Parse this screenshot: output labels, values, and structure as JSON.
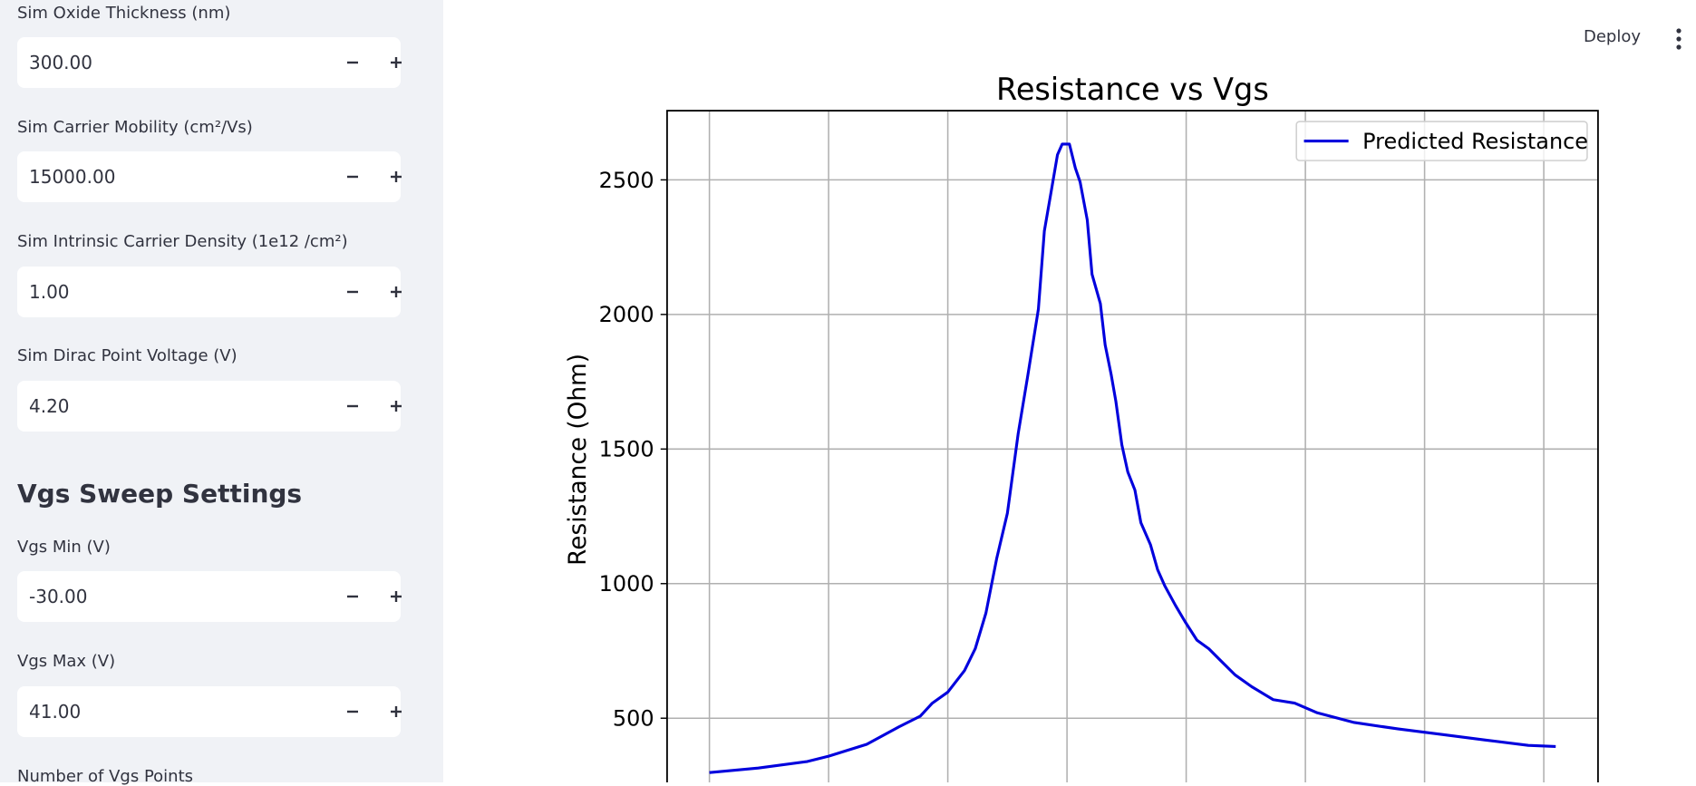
{
  "sidebar": {
    "fields": [
      {
        "label": "Sim Oxide Thickness (nm)",
        "value": "300.00"
      },
      {
        "label": "Sim Carrier Mobility (cm²/Vs)",
        "value": "15000.00"
      },
      {
        "label": "Sim Intrinsic Carrier Density (1e12 /cm²)",
        "value": "1.00"
      },
      {
        "label": "Sim Dirac Point Voltage (V)",
        "value": "4.20"
      }
    ],
    "section_heading": "Vgs Sweep Settings",
    "sweep_fields": [
      {
        "label": "Vgs Min (V)",
        "value": "-30.00"
      },
      {
        "label": "Vgs Max (V)",
        "value": "41.00"
      }
    ],
    "next_label": "Number of Vgs Points"
  },
  "header": {
    "deploy": "Deploy"
  },
  "chart_data": {
    "type": "line",
    "title": "Resistance vs Vgs",
    "ylabel": "Resistance (Ohm)",
    "x": [
      -30,
      -25.9,
      -21.8,
      -20,
      -16.8,
      -14.1,
      -12.3,
      -11.3,
      -10,
      -8.6,
      -7.7,
      -6.8,
      -5.9,
      -5,
      -4.1,
      -3.3,
      -2.4,
      -1.9,
      -1.3,
      -0.8,
      -0.4,
      0.2,
      0.7,
      1.1,
      1.7,
      2.1,
      2.8,
      3.2,
      3.7,
      4.1,
      4.6,
      5.1,
      5.7,
      6.2,
      7.0,
      7.6,
      8.2,
      9.1,
      9.9,
      10.9,
      11.9,
      12.8,
      14.1,
      15.5,
      17.3,
      19.1,
      21.0,
      24.1,
      27.8,
      31.4,
      35.1,
      38.7,
      41
    ],
    "series": [
      {
        "name": "Predicted Resistance",
        "color": "#0000dd",
        "values": [
          298,
          315,
          339,
          359,
          403,
          468,
          508,
          556,
          597,
          677,
          758,
          891,
          1093,
          1262,
          1556,
          1770,
          2020,
          2310,
          2464,
          2593,
          2633,
          2633,
          2544,
          2492,
          2351,
          2149,
          2040,
          1887,
          1778,
          1677,
          1516,
          1415,
          1347,
          1226,
          1145,
          1052,
          992,
          919,
          859,
          790,
          758,
          718,
          661,
          617,
          569,
          556,
          520,
          484,
          460,
          440,
          419,
          399,
          395
        ]
      }
    ],
    "xlim": [
      -33.55,
      44.55
    ],
    "xticks": [
      -30,
      -20,
      -10,
      0,
      10,
      20,
      30,
      40
    ],
    "ylim": [
      181,
      2757
    ],
    "yticks": [
      500,
      1000,
      1500,
      2000,
      2500
    ],
    "grid": true,
    "legend": "upper right"
  }
}
